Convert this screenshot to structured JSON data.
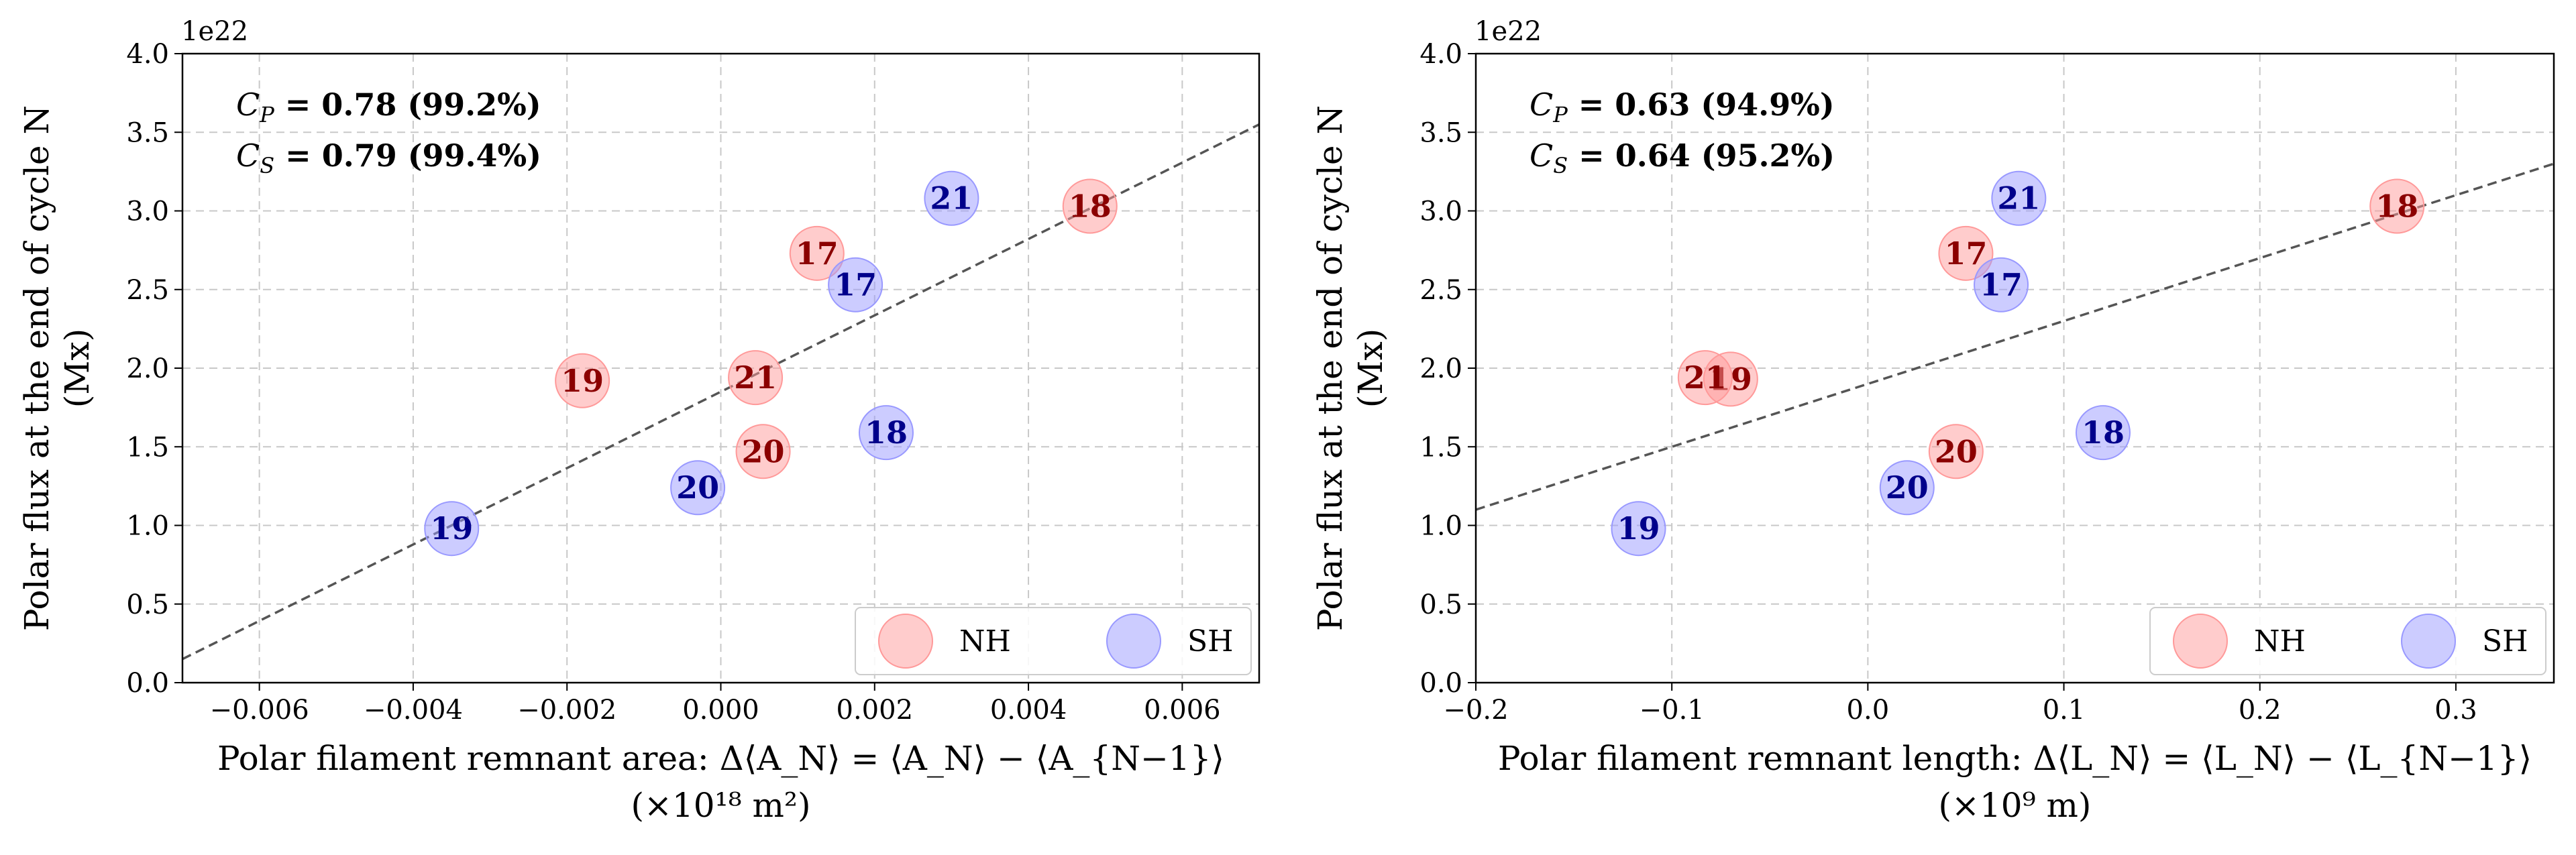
{
  "colors": {
    "NH": "#ff9999",
    "NH_text": "#8b0000",
    "SH": "#9999ff",
    "SH_text": "#00008b"
  },
  "chart_data": [
    {
      "type": "scatter",
      "offset_label": "1e22",
      "ylabel_line1": "Polar flux at the end of cycle N",
      "ylabel_line2": "(Mx)",
      "xlabel_line1": "Polar filament remnant area: Δ⟨A_N⟩ = ⟨A_N⟩ − ⟨A_{N−1}⟩",
      "xlabel_line2": "(×10¹⁸ m²)",
      "xlim": [
        -0.007,
        0.007
      ],
      "ylim": [
        0.0,
        4.0
      ],
      "xticks": [
        "−0.006",
        "−0.004",
        "−0.002",
        "0.000",
        "0.002",
        "0.004",
        "0.006"
      ],
      "xtick_values": [
        -0.006,
        -0.004,
        -0.002,
        0.0,
        0.002,
        0.004,
        0.006
      ],
      "yticks": [
        "0.0",
        "0.5",
        "1.0",
        "1.5",
        "2.0",
        "2.5",
        "3.0",
        "3.5",
        "4.0"
      ],
      "ytick_values": [
        0,
        0.5,
        1,
        1.5,
        2,
        2.5,
        3,
        3.5,
        4
      ],
      "grid": true,
      "legend_position": "bottom-right",
      "stats": [
        "C_P = 0.78 (99.2%)",
        "C_S = 0.79 (99.4%)"
      ],
      "fit_line": {
        "x": [
          -0.007,
          0.007
        ],
        "y": [
          0.15,
          3.55
        ]
      },
      "series": [
        {
          "name": "NH",
          "points": [
            {
              "label": "17",
              "x": 0.00125,
              "y": 2.73
            },
            {
              "label": "18",
              "x": 0.0048,
              "y": 3.03
            },
            {
              "label": "19",
              "x": -0.0018,
              "y": 1.92
            },
            {
              "label": "20",
              "x": 0.00055,
              "y": 1.47
            },
            {
              "label": "21",
              "x": 0.00045,
              "y": 1.94
            }
          ]
        },
        {
          "name": "SH",
          "points": [
            {
              "label": "17",
              "x": 0.00175,
              "y": 2.53
            },
            {
              "label": "18",
              "x": 0.00215,
              "y": 1.59
            },
            {
              "label": "19",
              "x": -0.0035,
              "y": 0.98
            },
            {
              "label": "20",
              "x": -0.0003,
              "y": 1.24
            },
            {
              "label": "21",
              "x": 0.003,
              "y": 3.08
            }
          ]
        }
      ]
    },
    {
      "type": "scatter",
      "offset_label": "1e22",
      "ylabel_line1": "Polar flux at the end of cycle N",
      "ylabel_line2": "(Mx)",
      "xlabel_line1": "Polar filament remnant length: Δ⟨L_N⟩ = ⟨L_N⟩ − ⟨L_{N−1}⟩",
      "xlabel_line2": "(×10⁹ m)",
      "xlim": [
        -0.2,
        0.35
      ],
      "ylim": [
        0.0,
        4.0
      ],
      "xticks": [
        "−0.2",
        "−0.1",
        "0.0",
        "0.1",
        "0.2",
        "0.3"
      ],
      "xtick_values": [
        -0.2,
        -0.1,
        0.0,
        0.1,
        0.2,
        0.3
      ],
      "yticks": [
        "0.0",
        "0.5",
        "1.0",
        "1.5",
        "2.0",
        "2.5",
        "3.0",
        "3.5",
        "4.0"
      ],
      "ytick_values": [
        0,
        0.5,
        1,
        1.5,
        2,
        2.5,
        3,
        3.5,
        4
      ],
      "grid": true,
      "legend_position": "bottom-right",
      "stats": [
        "C_P = 0.63 (94.9%)",
        "C_S = 0.64 (95.2%)"
      ],
      "fit_line": {
        "x": [
          -0.2,
          0.35
        ],
        "y": [
          1.1,
          3.3
        ]
      },
      "series": [
        {
          "name": "NH",
          "points": [
            {
              "label": "17",
              "x": 0.05,
              "y": 2.73
            },
            {
              "label": "18",
              "x": 0.27,
              "y": 3.03
            },
            {
              "label": "19",
              "x": -0.07,
              "y": 1.93
            },
            {
              "label": "20",
              "x": 0.045,
              "y": 1.47
            },
            {
              "label": "21",
              "x": -0.083,
              "y": 1.94
            }
          ]
        },
        {
          "name": "SH",
          "points": [
            {
              "label": "17",
              "x": 0.068,
              "y": 2.53
            },
            {
              "label": "18",
              "x": 0.12,
              "y": 1.59
            },
            {
              "label": "19",
              "x": -0.117,
              "y": 0.98
            },
            {
              "label": "20",
              "x": 0.02,
              "y": 1.24
            },
            {
              "label": "21",
              "x": 0.077,
              "y": 3.08
            }
          ]
        }
      ]
    }
  ]
}
